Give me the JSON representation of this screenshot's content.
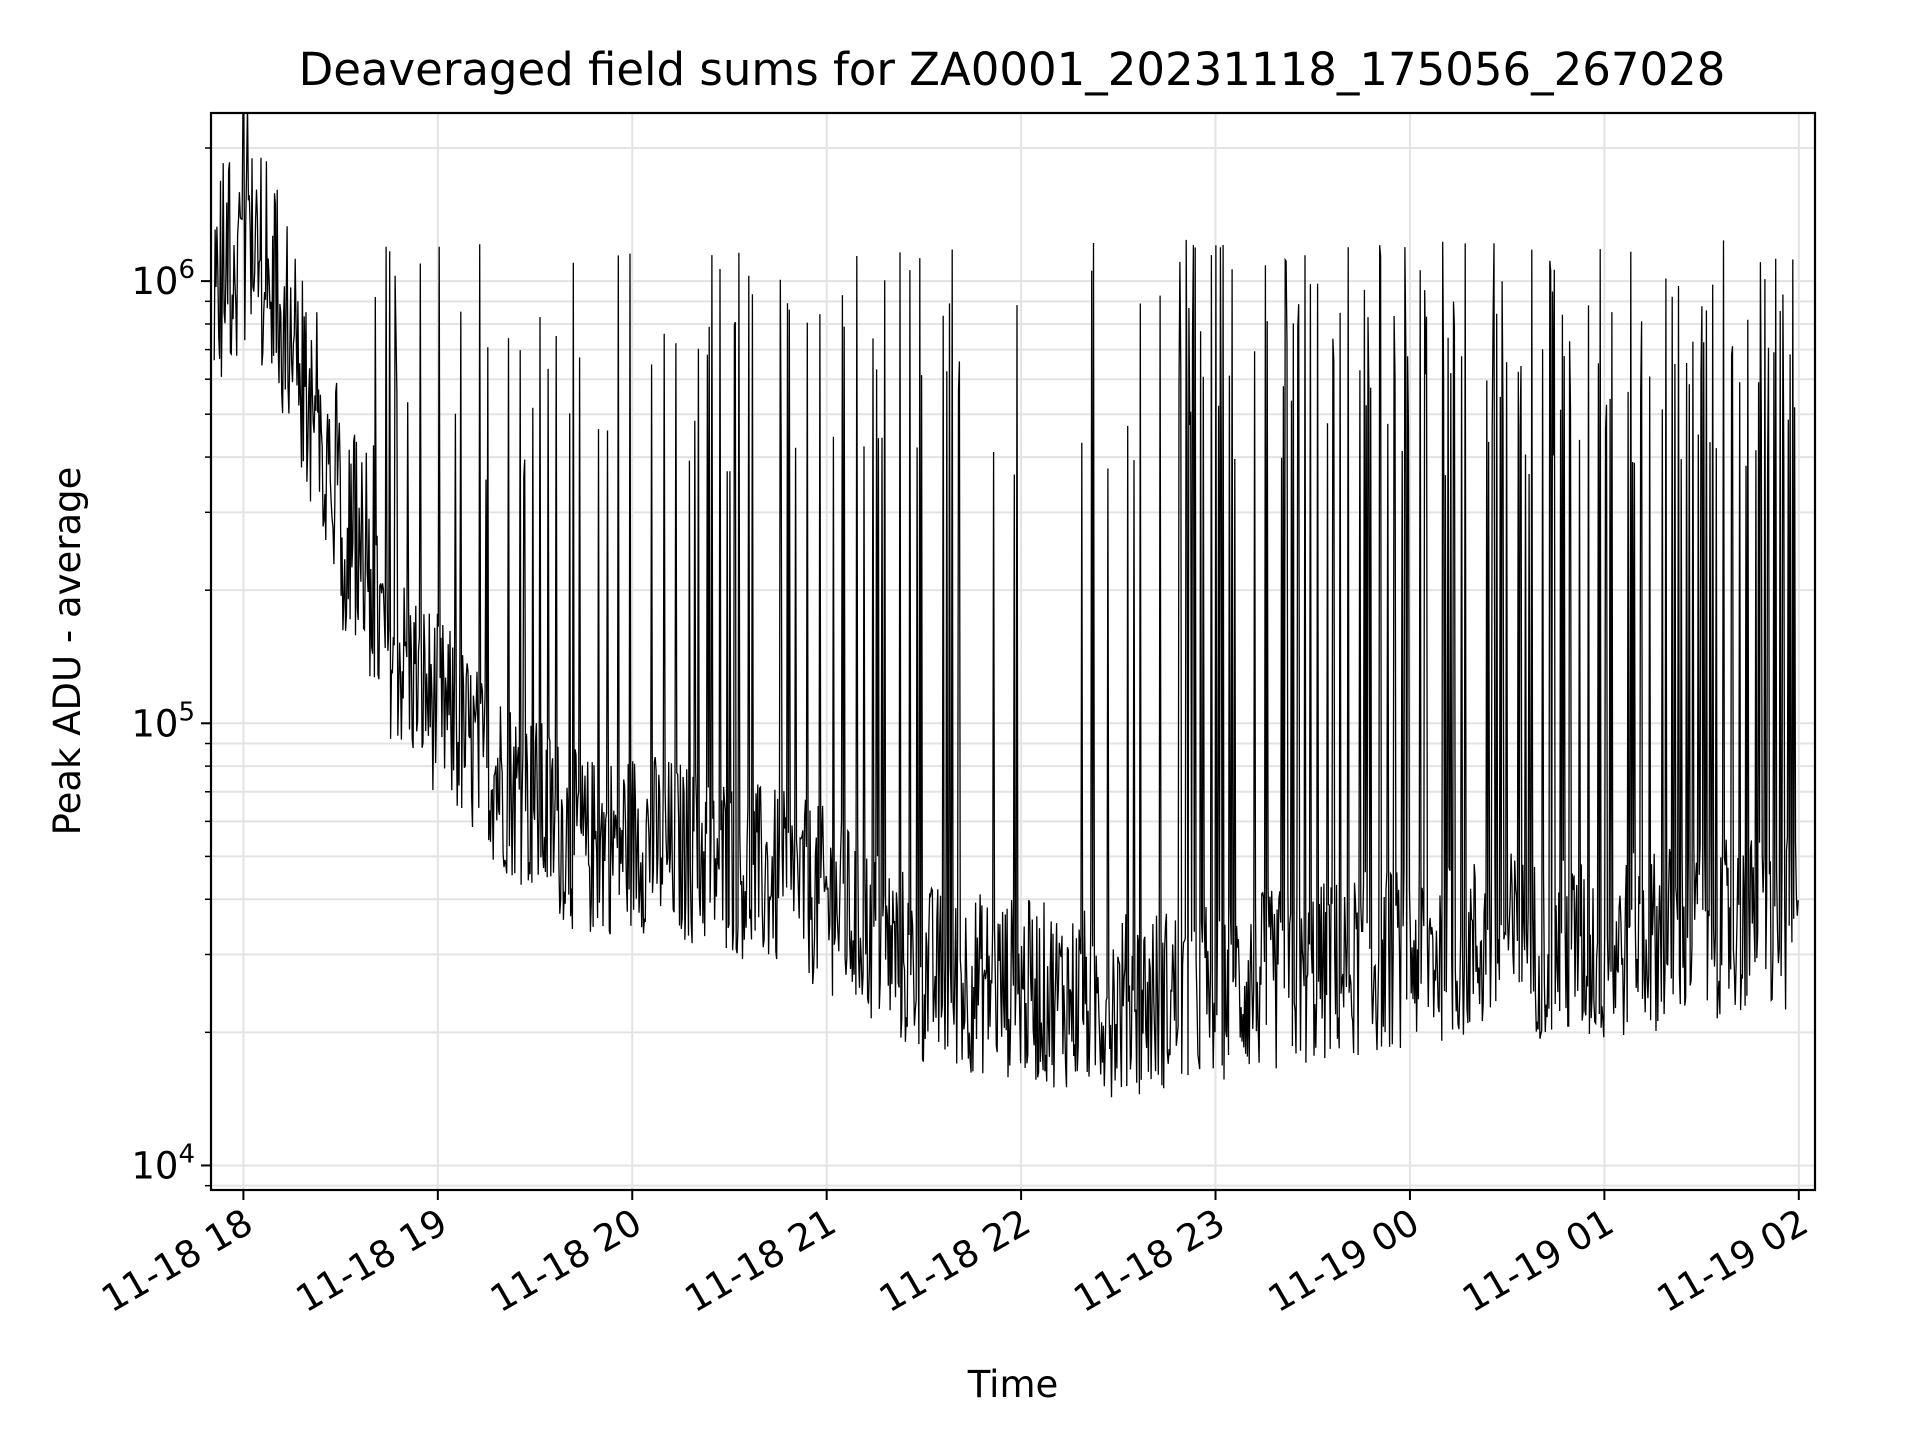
{
  "chart_data": {
    "type": "line",
    "title": "Deaveraged field sums for ZA0001_20231118_175056_267028",
    "xlabel": "Time",
    "ylabel": "Peak ADU - average",
    "x_ticks": [
      "11-18 18",
      "11-18 19",
      "11-18 20",
      "11-18 21",
      "11-18 22",
      "11-18 23",
      "11-19 00",
      "11-19 01",
      "11-19 02"
    ],
    "y_ticks": [
      {
        "base": "10",
        "exp": "4",
        "value": 10000
      },
      {
        "base": "10",
        "exp": "5",
        "value": 100000
      },
      {
        "base": "10",
        "exp": "6",
        "value": 1000000
      }
    ],
    "xlim": [
      "2023-11-18 17:50",
      "2023-11-19 02:05"
    ],
    "ylim": [
      8800,
      2400000
    ],
    "yscale": "log",
    "grid": true,
    "line_color": "#000000",
    "series": [
      {
        "values": [
          {
            "x": "2023-11-18 17:51",
            "y": 800000
          },
          {
            "x": "2023-11-18 18:00",
            "y": 1200000
          },
          {
            "x": "2023-11-18 18:15",
            "y": 600000
          },
          {
            "x": "2023-11-18 18:30",
            "y": 250000
          },
          {
            "x": "2023-11-18 18:45",
            "y": 150000
          },
          {
            "x": "2023-11-18 19:00",
            "y": 110000
          },
          {
            "x": "2023-11-18 19:15",
            "y": 80000
          },
          {
            "x": "2023-11-18 19:30",
            "y": 65000
          },
          {
            "x": "2023-11-18 19:45",
            "y": 52000
          },
          {
            "x": "2023-11-18 20:00",
            "y": 55000
          },
          {
            "x": "2023-11-18 20:30",
            "y": 48000
          },
          {
            "x": "2023-11-18 21:00",
            "y": 40000
          },
          {
            "x": "2023-11-18 21:30",
            "y": 27000
          },
          {
            "x": "2023-11-18 22:00",
            "y": 25000
          },
          {
            "x": "2023-11-18 22:30",
            "y": 23000
          },
          {
            "x": "2023-11-18 23:00",
            "y": 25000
          },
          {
            "x": "2023-11-18 23:30",
            "y": 27000
          },
          {
            "x": "2023-11-19 00:00",
            "y": 30000
          },
          {
            "x": "2023-11-19 00:30",
            "y": 32000
          },
          {
            "x": "2023-11-19 01:00",
            "y": 30000
          },
          {
            "x": "2023-11-19 01:30",
            "y": 35000
          },
          {
            "x": "2023-11-19 02:00",
            "y": 34000
          }
        ]
      }
    ]
  }
}
